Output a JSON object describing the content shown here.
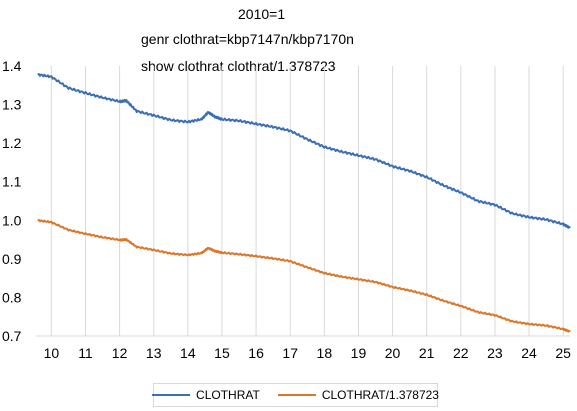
{
  "header": {
    "line1": "2010=1",
    "line2": "genr clothrat=kbp7147n/kbp7170n",
    "line3": "show clothrat clothrat/1.378723"
  },
  "chart_data": {
    "type": "line",
    "title": "",
    "xlabel": "",
    "ylabel": "",
    "x_ticks": [
      "10",
      "11",
      "12",
      "13",
      "14",
      "15",
      "16",
      "17",
      "18",
      "19",
      "20",
      "21",
      "22",
      "23",
      "24",
      "25"
    ],
    "xlim": [
      9.55,
      25.2
    ],
    "ylim": [
      0.7,
      1.4
    ],
    "y_ticks": [
      "0.7",
      "0.8",
      "0.9",
      "1.0",
      "1.1",
      "1.2",
      "1.3",
      "1.4"
    ],
    "grid": "vertical",
    "legend_position": "bottom",
    "series": [
      {
        "name": "CLOTHRAT",
        "color": "#3a6eb5",
        "x": [
          9.6,
          10.0,
          10.5,
          11.0,
          11.5,
          12.0,
          12.2,
          12.5,
          13.0,
          13.5,
          14.0,
          14.4,
          14.6,
          14.8,
          15.0,
          15.5,
          16.0,
          16.5,
          17.0,
          17.5,
          18.0,
          18.5,
          19.0,
          19.5,
          20.0,
          20.5,
          21.0,
          21.5,
          22.0,
          22.5,
          23.0,
          23.5,
          24.0,
          24.5,
          25.0,
          25.2
        ],
        "values": [
          1.378,
          1.372,
          1.343,
          1.33,
          1.318,
          1.308,
          1.31,
          1.283,
          1.272,
          1.26,
          1.255,
          1.262,
          1.28,
          1.268,
          1.262,
          1.258,
          1.25,
          1.242,
          1.232,
          1.21,
          1.19,
          1.178,
          1.168,
          1.158,
          1.14,
          1.128,
          1.112,
          1.09,
          1.072,
          1.05,
          1.04,
          1.018,
          1.008,
          1.002,
          0.99,
          0.98
        ]
      },
      {
        "name": "CLOTHRAT/1.378723",
        "color": "#d9772b",
        "x": [
          9.6,
          10.0,
          10.5,
          11.0,
          11.5,
          12.0,
          12.2,
          12.5,
          13.0,
          13.5,
          14.0,
          14.4,
          14.6,
          14.8,
          15.0,
          15.5,
          16.0,
          16.5,
          17.0,
          17.5,
          18.0,
          18.5,
          19.0,
          19.5,
          20.0,
          20.5,
          21.0,
          21.5,
          22.0,
          22.5,
          23.0,
          23.5,
          24.0,
          24.5,
          25.0,
          25.2
        ],
        "values": [
          1.0,
          0.995,
          0.975,
          0.965,
          0.956,
          0.949,
          0.95,
          0.931,
          0.923,
          0.914,
          0.91,
          0.915,
          0.928,
          0.92,
          0.916,
          0.912,
          0.907,
          0.901,
          0.894,
          0.878,
          0.863,
          0.854,
          0.847,
          0.84,
          0.827,
          0.818,
          0.807,
          0.791,
          0.778,
          0.762,
          0.754,
          0.738,
          0.731,
          0.727,
          0.718,
          0.711
        ]
      }
    ]
  }
}
